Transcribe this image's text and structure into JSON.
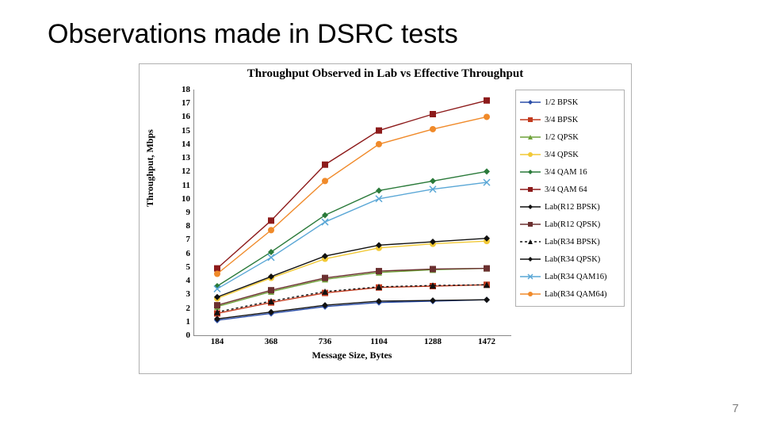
{
  "slide": {
    "title": "Observations made in DSRC tests",
    "page_number": "7"
  },
  "chart": {
    "type": "line",
    "title": "Throughput Observed in Lab vs Effective Throughput",
    "title_fontsize": 15,
    "xlabel": "Message Size, Bytes",
    "ylabel": "Throughput, Mbps",
    "label_fontsize": 12,
    "background_color": "#ffffff",
    "border_color": "#b0b0b0",
    "axis_color": "#888888",
    "tick_fontsize": 11,
    "ylim": [
      0,
      18
    ],
    "ytick_step": 1,
    "categories": [
      "184",
      "368",
      "736",
      "1104",
      "1288",
      "1472"
    ],
    "marker_size": 4,
    "line_width": 1.4,
    "series": [
      {
        "name": "1/2 BPSK",
        "color": "#2b4ea8",
        "marker": "diamond",
        "dash": "none",
        "values": [
          1.1,
          1.6,
          2.1,
          2.4,
          2.5,
          2.6
        ]
      },
      {
        "name": "3/4 BPSK",
        "color": "#c23a1e",
        "marker": "square",
        "dash": "none",
        "values": [
          1.6,
          2.4,
          3.1,
          3.5,
          3.6,
          3.7
        ]
      },
      {
        "name": "1/2 QPSK",
        "color": "#6fa23a",
        "marker": "triangle",
        "dash": "none",
        "values": [
          2.1,
          3.2,
          4.1,
          4.6,
          4.8,
          4.9
        ]
      },
      {
        "name": "3/4 QPSK",
        "color": "#f2c936",
        "marker": "circle",
        "dash": "none",
        "values": [
          2.7,
          4.2,
          5.6,
          6.4,
          6.7,
          6.9
        ]
      },
      {
        "name": "3/4 QAM  16",
        "color": "#2a7a3a",
        "marker": "diamond",
        "dash": "none",
        "values": [
          3.6,
          6.1,
          8.8,
          10.6,
          11.3,
          12.0
        ]
      },
      {
        "name": "3/4 QAM 64",
        "color": "#8d1b1b",
        "marker": "square",
        "dash": "none",
        "values": [
          4.9,
          8.4,
          12.5,
          15.0,
          16.2,
          17.2
        ]
      },
      {
        "name": "Lab(R12 BPSK)",
        "color": "#111111",
        "marker": "diamond",
        "dash": "none",
        "values": [
          1.2,
          1.7,
          2.2,
          2.5,
          2.55,
          2.6
        ]
      },
      {
        "name": "Lab(R12 QPSK)",
        "color": "#6b3030",
        "marker": "square",
        "dash": "none",
        "values": [
          2.2,
          3.3,
          4.2,
          4.7,
          4.85,
          4.9
        ]
      },
      {
        "name": "Lab(R34 BPSK)",
        "color": "#111111",
        "marker": "triangle",
        "dash": "3,3",
        "values": [
          1.7,
          2.5,
          3.2,
          3.55,
          3.65,
          3.7
        ]
      },
      {
        "name": "Lab(R34 QPSK)",
        "color": "#111111",
        "marker": "diamond",
        "dash": "none",
        "values": [
          2.8,
          4.3,
          5.8,
          6.6,
          6.85,
          7.1
        ]
      },
      {
        "name": "Lab(R34 QAM16)",
        "color": "#5aa7d6",
        "marker": "x",
        "dash": "none",
        "values": [
          3.4,
          5.7,
          8.3,
          10.0,
          10.7,
          11.2
        ]
      },
      {
        "name": "Lab(R34 QAM64)",
        "color": "#f08a2a",
        "marker": "circle",
        "dash": "none",
        "values": [
          4.5,
          7.7,
          11.3,
          14.0,
          15.1,
          16.0
        ]
      }
    ]
  }
}
